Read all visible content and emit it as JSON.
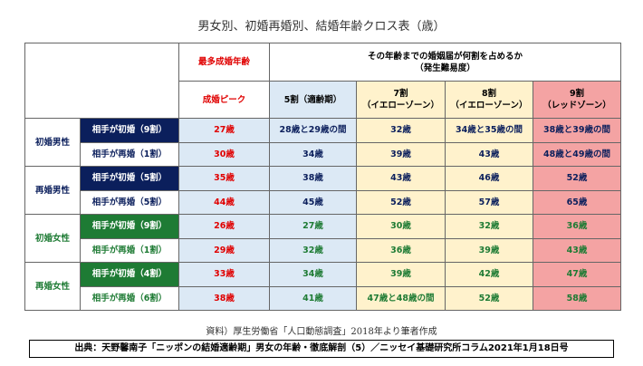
{
  "header": {
    "title": "男女別、初婚再婚別、結婚年齢クロス表（歳）"
  },
  "table": {
    "top_peak": "最多成婚年齢",
    "top_span": "その年齢までの婚姻届が何割を占めるか",
    "top_span_sub": "（発生難易度）",
    "col_peak": "成婚ピーク",
    "col_50": "5割（適齢期）",
    "col_70": "7割",
    "col_70_sub": "（イエローゾーン）",
    "col_80": "8割",
    "col_80_sub": "（イエローゾーン）",
    "col_90": "9割",
    "col_90_sub": "（レッドゾーン）",
    "groups": [
      {
        "label": "初婚男性",
        "rows": [
          {
            "partner": "相手が初婚（9割）",
            "cells": [
              "27歳",
              "28歳と29歳の間",
              "32歳",
              "34歳と35歳の間",
              "38歳と39歳の間"
            ]
          },
          {
            "partner": "相手が再婚（1割）",
            "cells": [
              "30歳",
              "34歳",
              "39歳",
              "43歳",
              "48歳と49歳の間"
            ]
          }
        ]
      },
      {
        "label": "再婚男性",
        "rows": [
          {
            "partner": "相手が初婚（5割）",
            "cells": [
              "35歳",
              "38歳",
              "43歳",
              "46歳",
              "52歳"
            ]
          },
          {
            "partner": "相手が再婚（5割）",
            "cells": [
              "44歳",
              "45歳",
              "52歳",
              "57歳",
              "65歳"
            ]
          }
        ]
      },
      {
        "label": "初婚女性",
        "rows": [
          {
            "partner": "相手が初婚（9割）",
            "cells": [
              "26歳",
              "27歳",
              "30歳",
              "32歳",
              "36歳"
            ]
          },
          {
            "partner": "相手が再婚（1割）",
            "cells": [
              "29歳",
              "32歳",
              "36歳",
              "39歳",
              "43歳"
            ]
          }
        ]
      },
      {
        "label": "再婚女性",
        "rows": [
          {
            "partner": "相手が初婚（4割）",
            "cells": [
              "33歳",
              "34歳",
              "39歳",
              "42歳",
              "47歳"
            ]
          },
          {
            "partner": "相手が再婚（6割）",
            "cells": [
              "38歳",
              "41歳",
              "47歳と48歳の間",
              "52歳",
              "58歳"
            ]
          }
        ]
      }
    ]
  },
  "footnote": "資料）厚生労働省「人口動態調査」2018年より筆者作成",
  "source": "出典：天野馨南子「ニッポンの結婚適齢期」男女の年齢・徹底解剖（5）／ニッセイ基礎研究所コラム2021年1月18日号"
}
